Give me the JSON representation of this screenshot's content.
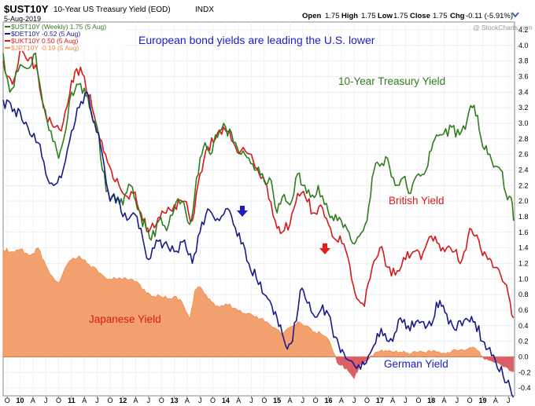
{
  "header": {
    "symbol": "$UST10Y",
    "name": "10-Year US Treasury Yield (EOD)",
    "exchange": "INDX",
    "date": "5-Aug-2019",
    "open_label": "Open",
    "open": "1.75",
    "high_label": "High",
    "high": "1.75",
    "low_label": "Low",
    "low": "1.75",
    "close_label": "Close",
    "close": "1.75",
    "chg_label": "Chg",
    "chg": "-0.11 (-5.91%)",
    "watermark": "@ StockCharts.com",
    "dropdown_icon": "chevron-down-icon"
  },
  "legend": [
    {
      "label": "$UST10Y (Weekly) 1.75 (5 Aug)",
      "color": "#2e7d1f"
    },
    {
      "label": "$DET10Y -0.52 (5 Aug)",
      "color": "#1a1a8c"
    },
    {
      "label": "$UKT10Y 0.50 (5 Aug)",
      "color": "#d7191c"
    },
    {
      "label": "$JPT10Y -0.19 (5 Aug)",
      "color": "#f08a4b"
    }
  ],
  "annotations": {
    "headline": "European bond yields are leading the U.S. lower",
    "treasury": "10-Year Treasury Yield",
    "british": "British Yield",
    "japanese": "Japanese Yield",
    "german": "German Yield"
  },
  "chart_data": {
    "type": "line",
    "ylim": [
      -0.5,
      4.3
    ],
    "y_ticks": [
      "-0.4",
      "-0.2",
      "0.0",
      "0.2",
      "0.4",
      "0.6",
      "0.8",
      "1.0",
      "1.2",
      "1.4",
      "1.6",
      "1.8",
      "2.0",
      "2.2",
      "2.4",
      "2.6",
      "2.8",
      "3.0",
      "3.2",
      "3.4",
      "3.6",
      "3.8",
      "4.0",
      "4.2"
    ],
    "x_range": [
      2009.67,
      2019.62
    ],
    "x_ticks": [
      {
        "t": 2009.75,
        "l": "O"
      },
      {
        "t": 2010.0,
        "l": "10"
      },
      {
        "t": 2010.25,
        "l": "A"
      },
      {
        "t": 2010.5,
        "l": "J"
      },
      {
        "t": 2010.75,
        "l": "O"
      },
      {
        "t": 2011.0,
        "l": "11"
      },
      {
        "t": 2011.25,
        "l": "A"
      },
      {
        "t": 2011.5,
        "l": "J"
      },
      {
        "t": 2011.75,
        "l": "O"
      },
      {
        "t": 2012.0,
        "l": "12"
      },
      {
        "t": 2012.25,
        "l": "A"
      },
      {
        "t": 2012.5,
        "l": "J"
      },
      {
        "t": 2012.75,
        "l": "O"
      },
      {
        "t": 2013.0,
        "l": "13"
      },
      {
        "t": 2013.25,
        "l": "A"
      },
      {
        "t": 2013.5,
        "l": "J"
      },
      {
        "t": 2013.75,
        "l": "O"
      },
      {
        "t": 2014.0,
        "l": "14"
      },
      {
        "t": 2014.25,
        "l": "A"
      },
      {
        "t": 2014.5,
        "l": "J"
      },
      {
        "t": 2014.75,
        "l": "O"
      },
      {
        "t": 2015.0,
        "l": "15"
      },
      {
        "t": 2015.25,
        "l": "A"
      },
      {
        "t": 2015.5,
        "l": "J"
      },
      {
        "t": 2015.75,
        "l": "O"
      },
      {
        "t": 2016.0,
        "l": "16"
      },
      {
        "t": 2016.25,
        "l": "A"
      },
      {
        "t": 2016.5,
        "l": "J"
      },
      {
        "t": 2016.75,
        "l": "O"
      },
      {
        "t": 2017.0,
        "l": "17"
      },
      {
        "t": 2017.25,
        "l": "A"
      },
      {
        "t": 2017.5,
        "l": "J"
      },
      {
        "t": 2017.75,
        "l": "O"
      },
      {
        "t": 2018.0,
        "l": "18"
      },
      {
        "t": 2018.25,
        "l": "A"
      },
      {
        "t": 2018.5,
        "l": "J"
      },
      {
        "t": 2018.75,
        "l": "O"
      },
      {
        "t": 2019.0,
        "l": "19"
      },
      {
        "t": 2019.25,
        "l": "A"
      },
      {
        "t": 2019.5,
        "l": "J"
      }
    ],
    "series": [
      {
        "name": "$UST10Y",
        "color": "#2e7d1f",
        "type": "line",
        "x": [
          2009.67,
          2009.8,
          2010.0,
          2010.15,
          2010.3,
          2010.45,
          2010.6,
          2010.75,
          2010.85,
          2011.0,
          2011.1,
          2011.25,
          2011.35,
          2011.5,
          2011.6,
          2011.75,
          2011.9,
          2012.0,
          2012.15,
          2012.25,
          2012.35,
          2012.45,
          2012.55,
          2012.7,
          2012.85,
          2013.0,
          2013.15,
          2013.3,
          2013.4,
          2013.5,
          2013.6,
          2013.7,
          2013.8,
          2014.0,
          2014.15,
          2014.3,
          2014.45,
          2014.6,
          2014.75,
          2014.85,
          2015.0,
          2015.1,
          2015.25,
          2015.4,
          2015.5,
          2015.65,
          2015.8,
          2016.0,
          2016.1,
          2016.25,
          2016.4,
          2016.5,
          2016.6,
          2016.75,
          2016.85,
          2016.95,
          2017.0,
          2017.15,
          2017.3,
          2017.45,
          2017.6,
          2017.75,
          2017.9,
          2018.0,
          2018.1,
          2018.2,
          2018.4,
          2018.55,
          2018.7,
          2018.8,
          2018.9,
          2019.0,
          2019.1,
          2019.25,
          2019.35,
          2019.45,
          2019.55,
          2019.6
        ],
        "y": [
          3.9,
          3.4,
          3.75,
          3.7,
          3.9,
          3.2,
          2.9,
          2.55,
          2.8,
          3.4,
          3.5,
          3.45,
          3.2,
          2.95,
          2.4,
          2.0,
          2.05,
          1.95,
          2.2,
          2.0,
          1.8,
          1.65,
          1.5,
          1.75,
          1.62,
          1.9,
          2.0,
          1.7,
          2.1,
          2.55,
          2.75,
          2.6,
          2.85,
          2.95,
          2.75,
          2.6,
          2.55,
          2.4,
          2.25,
          2.3,
          1.85,
          2.05,
          1.95,
          2.35,
          2.2,
          2.05,
          2.2,
          1.85,
          1.75,
          1.75,
          1.6,
          1.45,
          1.55,
          1.75,
          2.3,
          2.5,
          2.45,
          2.55,
          2.2,
          2.3,
          2.1,
          2.35,
          2.4,
          2.65,
          2.85,
          2.85,
          2.95,
          2.85,
          3.05,
          3.2,
          3.1,
          2.7,
          2.6,
          2.45,
          2.4,
          2.1,
          2.05,
          1.75
        ]
      },
      {
        "name": "$UKT10Y",
        "color": "#d7191c",
        "type": "line",
        "x": [
          2009.67,
          2009.85,
          2010.0,
          2010.15,
          2010.3,
          2010.5,
          2010.65,
          2010.8,
          2011.0,
          2011.1,
          2011.25,
          2011.4,
          2011.55,
          2011.7,
          2011.85,
          2012.0,
          2012.2,
          2012.35,
          2012.5,
          2012.65,
          2012.8,
          2013.0,
          2013.2,
          2013.35,
          2013.5,
          2013.65,
          2013.8,
          2014.0,
          2014.15,
          2014.3,
          2014.5,
          2014.65,
          2014.8,
          2015.0,
          2015.1,
          2015.25,
          2015.4,
          2015.55,
          2015.7,
          2015.85,
          2016.0,
          2016.15,
          2016.3,
          2016.45,
          2016.55,
          2016.7,
          2016.85,
          2017.0,
          2017.15,
          2017.3,
          2017.5,
          2017.65,
          2017.8,
          2018.0,
          2018.15,
          2018.3,
          2018.45,
          2018.6,
          2018.75,
          2018.85,
          2019.0,
          2019.1,
          2019.2,
          2019.35,
          2019.5,
          2019.6
        ],
        "y": [
          3.8,
          3.5,
          3.95,
          3.8,
          3.75,
          3.1,
          2.95,
          2.9,
          3.55,
          3.7,
          3.6,
          3.2,
          2.8,
          2.5,
          2.25,
          2.1,
          2.1,
          1.85,
          1.6,
          1.7,
          1.85,
          1.95,
          2.0,
          1.75,
          2.35,
          2.7,
          2.8,
          2.9,
          2.75,
          2.65,
          2.6,
          2.35,
          2.2,
          1.65,
          1.6,
          1.7,
          2.1,
          2.05,
          1.85,
          1.95,
          1.7,
          1.5,
          1.45,
          1.0,
          0.75,
          0.65,
          1.15,
          1.4,
          1.15,
          1.05,
          1.25,
          1.35,
          1.25,
          1.55,
          1.45,
          1.4,
          1.35,
          1.25,
          1.65,
          1.55,
          1.3,
          1.25,
          1.15,
          1.05,
          0.8,
          0.5
        ]
      },
      {
        "name": "$DET10Y",
        "color": "#1a1a8c",
        "type": "line",
        "x": [
          2009.67,
          2009.85,
          2010.0,
          2010.15,
          2010.35,
          2010.5,
          2010.65,
          2010.8,
          2011.0,
          2011.15,
          2011.3,
          2011.45,
          2011.6,
          2011.75,
          2011.9,
          2012.0,
          2012.2,
          2012.35,
          2012.5,
          2012.65,
          2012.8,
          2013.0,
          2013.2,
          2013.35,
          2013.5,
          2013.65,
          2013.8,
          2014.0,
          2014.15,
          2014.3,
          2014.45,
          2014.6,
          2014.75,
          2014.9,
          2015.0,
          2015.1,
          2015.2,
          2015.3,
          2015.45,
          2015.55,
          2015.7,
          2015.85,
          2016.0,
          2016.1,
          2016.2,
          2016.3,
          2016.45,
          2016.55,
          2016.7,
          2016.85,
          2016.95,
          2017.1,
          2017.25,
          2017.4,
          2017.55,
          2017.7,
          2017.85,
          2018.0,
          2018.1,
          2018.2,
          2018.3,
          2018.45,
          2018.6,
          2018.75,
          2018.85,
          2019.0,
          2019.1,
          2019.25,
          2019.4,
          2019.5,
          2019.6
        ],
        "y": [
          3.3,
          3.15,
          3.15,
          2.95,
          2.75,
          2.35,
          2.2,
          2.3,
          2.9,
          3.2,
          3.4,
          3.0,
          2.6,
          2.0,
          2.05,
          1.8,
          1.85,
          1.65,
          1.25,
          1.5,
          1.45,
          1.35,
          1.5,
          1.2,
          1.6,
          1.9,
          1.75,
          1.9,
          1.7,
          1.45,
          1.2,
          1.0,
          0.8,
          0.65,
          0.5,
          0.3,
          0.1,
          0.2,
          0.85,
          0.75,
          0.55,
          0.6,
          0.55,
          0.25,
          0.15,
          0.05,
          -0.05,
          -0.15,
          -0.1,
          0.1,
          0.3,
          0.3,
          0.2,
          0.5,
          0.4,
          0.45,
          0.45,
          0.4,
          0.7,
          0.65,
          0.55,
          0.35,
          0.4,
          0.45,
          0.45,
          0.2,
          0.1,
          -0.05,
          -0.25,
          -0.3,
          -0.52
        ]
      },
      {
        "name": "$JPT10Y",
        "color": "#f08a4b",
        "type": "area",
        "x": [
          2009.67,
          2009.85,
          2010.0,
          2010.2,
          2010.35,
          2010.5,
          2010.6,
          2010.75,
          2010.85,
          2011.0,
          2011.15,
          2011.3,
          2011.45,
          2011.6,
          2011.75,
          2011.9,
          2012.0,
          2012.15,
          2012.3,
          2012.45,
          2012.6,
          2012.75,
          2012.9,
          2013.0,
          2013.15,
          2013.3,
          2013.4,
          2013.5,
          2013.65,
          2013.8,
          2014.0,
          2014.2,
          2014.4,
          2014.6,
          2014.8,
          2015.0,
          2015.1,
          2015.25,
          2015.4,
          2015.55,
          2015.7,
          2015.85,
          2016.0,
          2016.1,
          2016.2,
          2016.35,
          2016.5,
          2016.6,
          2016.75,
          2016.9,
          2017.0,
          2017.25,
          2017.5,
          2017.75,
          2018.0,
          2018.25,
          2018.5,
          2018.75,
          2018.9,
          2019.0,
          2019.15,
          2019.3,
          2019.45,
          2019.6
        ],
        "y": [
          1.38,
          1.35,
          1.38,
          1.3,
          1.4,
          1.18,
          1.05,
          0.95,
          1.1,
          1.25,
          1.3,
          1.2,
          1.15,
          1.05,
          1.0,
          1.0,
          1.0,
          1.0,
          0.95,
          0.82,
          0.78,
          0.77,
          0.75,
          0.78,
          0.7,
          0.48,
          0.85,
          0.9,
          0.75,
          0.65,
          0.68,
          0.62,
          0.55,
          0.52,
          0.45,
          0.35,
          0.3,
          0.38,
          0.45,
          0.4,
          0.32,
          0.3,
          0.22,
          0.05,
          -0.1,
          -0.15,
          -0.28,
          -0.12,
          -0.05,
          0.05,
          0.07,
          0.06,
          0.05,
          0.06,
          0.06,
          0.05,
          0.08,
          0.12,
          0.08,
          0.0,
          -0.05,
          -0.08,
          -0.13,
          -0.19
        ]
      }
    ]
  }
}
